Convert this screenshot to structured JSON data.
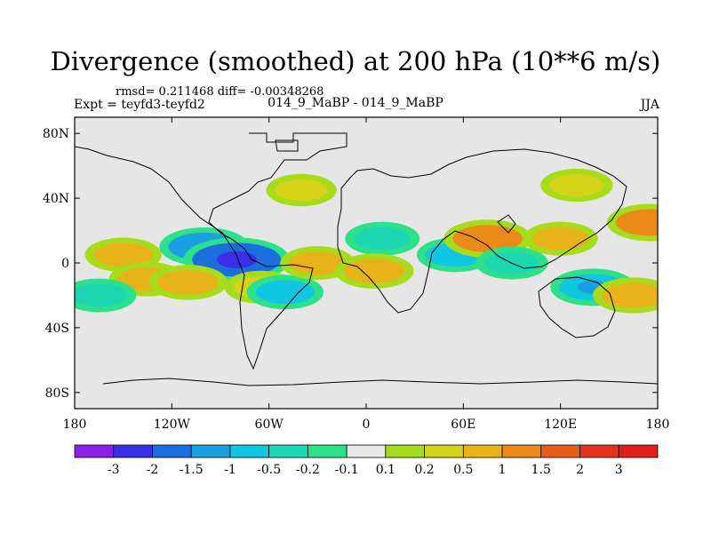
{
  "header": {
    "title": "Divergence (smoothed) at 200 hPa (10**6 m/s)",
    "stats": "rmsd= 0.211468 diff= -0.00348268",
    "expt": "Expt = teyfd3-teyfd2",
    "center_label": "014_9_MaBP - 014_9_MaBP",
    "season": "JJA"
  },
  "chart_data": {
    "type": "heatmap",
    "title": "Divergence (smoothed) at 200 hPa (10**6 m/s)",
    "subtitle": "014_9_MaBP - 014_9_MaBP",
    "projection": "cylindrical equidistant",
    "xlabel": "",
    "ylabel": "",
    "xlim": [
      -180,
      180
    ],
    "ylim": [
      -90,
      90
    ],
    "x_ticks": [
      {
        "value": -180,
        "label": "180"
      },
      {
        "value": -120,
        "label": "120W"
      },
      {
        "value": -60,
        "label": "60W"
      },
      {
        "value": 0,
        "label": "0"
      },
      {
        "value": 60,
        "label": "60E"
      },
      {
        "value": 120,
        "label": "120E"
      },
      {
        "value": 180,
        "label": "180"
      }
    ],
    "y_ticks": [
      {
        "value": 80,
        "label": "80N"
      },
      {
        "value": 40,
        "label": "40N"
      },
      {
        "value": 0,
        "label": "0"
      },
      {
        "value": -40,
        "label": "40S"
      },
      {
        "value": -80,
        "label": "80S"
      }
    ],
    "colorbar": {
      "boundaries": [
        "-3",
        "-2",
        "-1.5",
        "-1",
        "-0.5",
        "-0.2",
        "-0.1",
        "0.1",
        "0.2",
        "0.5",
        "1",
        "1.5",
        "2",
        "3"
      ],
      "colors": [
        "#8b1ee8",
        "#3a2ee6",
        "#1a6fdd",
        "#1a9fe0",
        "#10c6e0",
        "#1cd7b2",
        "#2fe08a",
        "#e8e8e8",
        "#a6dc1c",
        "#d5d21a",
        "#e8b319",
        "#ea8a18",
        "#e85d1a",
        "#e6321c",
        "#e01d1d"
      ]
    },
    "fields": [
      {
        "lon": -150,
        "lat": 5,
        "value": 0.6
      },
      {
        "lon": -135,
        "lat": -10,
        "value": 0.6
      },
      {
        "lon": -165,
        "lat": -20,
        "value": -0.5
      },
      {
        "lon": -100,
        "lat": 10,
        "value": -1.2
      },
      {
        "lon": -80,
        "lat": 2,
        "value": -2.0
      },
      {
        "lon": -110,
        "lat": -12,
        "value": 0.7
      },
      {
        "lon": -65,
        "lat": -15,
        "value": 0.4
      },
      {
        "lon": -50,
        "lat": -18,
        "value": -0.6
      },
      {
        "lon": -30,
        "lat": 0,
        "value": 0.5
      },
      {
        "lon": 10,
        "lat": 15,
        "value": -0.5
      },
      {
        "lon": 5,
        "lat": -5,
        "value": 0.7
      },
      {
        "lon": 55,
        "lat": 5,
        "value": -0.6
      },
      {
        "lon": 75,
        "lat": 15,
        "value": 1.1
      },
      {
        "lon": 90,
        "lat": 0,
        "value": -0.4
      },
      {
        "lon": 120,
        "lat": 15,
        "value": 0.5
      },
      {
        "lon": 140,
        "lat": -15,
        "value": -1.0
      },
      {
        "lon": 165,
        "lat": -20,
        "value": 0.8
      },
      {
        "lon": 175,
        "lat": 25,
        "value": 1.0
      },
      {
        "lon": -40,
        "lat": 45,
        "value": 0.3
      },
      {
        "lon": 130,
        "lat": 48,
        "value": 0.4
      }
    ]
  }
}
